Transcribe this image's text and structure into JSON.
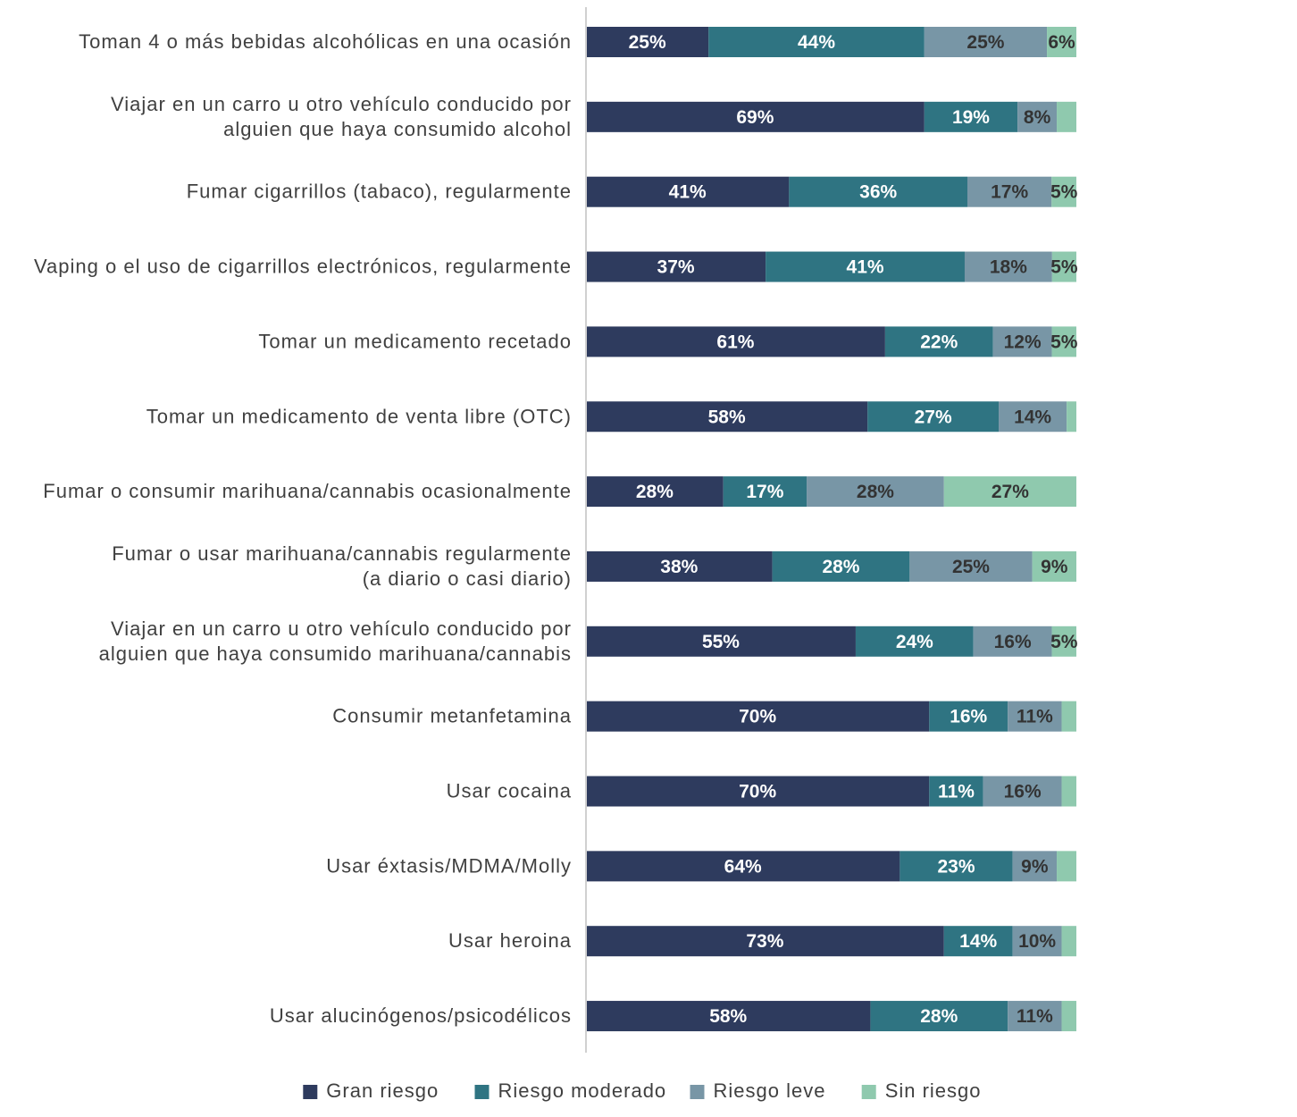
{
  "chart_data": {
    "type": "bar",
    "orientation": "horizontal",
    "stacked": true,
    "normalized": true,
    "xlim": [
      0,
      100
    ],
    "grid": false,
    "legend_position": "bottom",
    "title": "",
    "xlabel": "",
    "ylabel": "",
    "categories": [
      [
        "Toman 4 o más bebidas alcohólicas en una ocasión"
      ],
      [
        "Viajar en un carro u otro vehículo conducido por",
        "alguien que haya consumido alcohol"
      ],
      [
        "Fumar cigarrillos (tabaco), regularmente"
      ],
      [
        "Vaping o el uso de cigarrillos electrónicos, regularmente"
      ],
      [
        "Tomar un medicamento recetado"
      ],
      [
        "Tomar un medicamento de venta libre (OTC)"
      ],
      [
        "Fumar o consumir marihuana/cannabis ocasionalmente"
      ],
      [
        "Fumar o usar marihuana/cannabis regularmente",
        "(a diario o casi diario)"
      ],
      [
        "Viajar en un carro u otro vehículo conducido por",
        "alguien que haya consumido marihuana/cannabis"
      ],
      [
        "Consumir metanfetamina"
      ],
      [
        "Usar cocaina"
      ],
      [
        "Usar éxtasis/MDMA/Molly"
      ],
      [
        "Usar heroina"
      ],
      [
        "Usar alucinógenos/psicodélicos"
      ]
    ],
    "series": [
      {
        "name": "Gran riesgo",
        "color": "#2e3b5e",
        "label_color": "#ffffff",
        "values": [
          25,
          69,
          41,
          37,
          61,
          58,
          28,
          38,
          55,
          70,
          70,
          64,
          73,
          58
        ]
      },
      {
        "name": "Riesgo moderado",
        "color": "#2f7482",
        "label_color": "#ffffff",
        "values": [
          44,
          19,
          36,
          41,
          22,
          27,
          17,
          28,
          24,
          16,
          11,
          23,
          14,
          28
        ]
      },
      {
        "name": "Riesgo leve",
        "color": "#7896a6",
        "label_color": "#333333",
        "values": [
          25,
          8,
          17,
          18,
          12,
          14,
          28,
          25,
          16,
          11,
          16,
          9,
          10,
          11
        ]
      },
      {
        "name": "Sin riesgo",
        "color": "#8fc9ae",
        "label_color": "#333333",
        "values": [
          6,
          4,
          5,
          5,
          5,
          2,
          27,
          9,
          5,
          3,
          3,
          4,
          3,
          3
        ]
      }
    ],
    "value_labels": [
      [
        "25%",
        "44%",
        "25%",
        "6%"
      ],
      [
        "69%",
        "19%",
        "8%",
        ""
      ],
      [
        "41%",
        "36%",
        "17%",
        "5%"
      ],
      [
        "37%",
        "41%",
        "18%",
        "5%"
      ],
      [
        "61%",
        "22%",
        "12%",
        "5%"
      ],
      [
        "58%",
        "27%",
        "14%",
        ""
      ],
      [
        "28%",
        "17%",
        "28%",
        "27%"
      ],
      [
        "38%",
        "28%",
        "25%",
        "9%"
      ],
      [
        "55%",
        "24%",
        "16%",
        "5%"
      ],
      [
        "70%",
        "16%",
        "11%",
        ""
      ],
      [
        "70%",
        "11%",
        "16%",
        ""
      ],
      [
        "64%",
        "23%",
        "9%",
        ""
      ],
      [
        "73%",
        "14%",
        "10%",
        ""
      ],
      [
        "58%",
        "28%",
        "11%",
        ""
      ]
    ],
    "axis_color": "#d0d0d0"
  }
}
